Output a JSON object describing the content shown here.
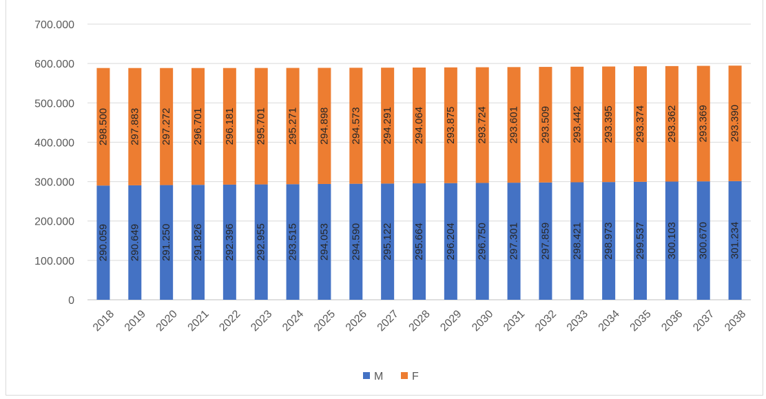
{
  "chart_data": {
    "type": "bar",
    "stacked": true,
    "title": "",
    "xlabel": "",
    "ylabel": "",
    "categories": [
      "2018",
      "2019",
      "2020",
      "2021",
      "2022",
      "2023",
      "2024",
      "2025",
      "2026",
      "2027",
      "2028",
      "2029",
      "2030",
      "2031",
      "2032",
      "2033",
      "2034",
      "2035",
      "2036",
      "2037",
      "2038"
    ],
    "series": [
      {
        "name": "M",
        "color": "#4472c4",
        "values": [
          290059,
          290649,
          291250,
          291826,
          292396,
          292955,
          293515,
          294053,
          294590,
          295122,
          295664,
          296204,
          296750,
          297301,
          297859,
          298421,
          298973,
          299537,
          300103,
          300670,
          301234
        ],
        "labels": [
          "290.059",
          "290.649",
          "291.250",
          "291.826",
          "292.396",
          "292.955",
          "293.515",
          "294.053",
          "294.590",
          "295.122",
          "295.664",
          "296.204",
          "296.750",
          "297.301",
          "297.859",
          "298.421",
          "298.973",
          "299.537",
          "300.103",
          "300.670",
          "301.234"
        ]
      },
      {
        "name": "F",
        "color": "#ed7d31",
        "values": [
          298500,
          297883,
          297272,
          296701,
          296181,
          295701,
          295271,
          294898,
          294573,
          294291,
          294064,
          293875,
          293724,
          293601,
          293509,
          293442,
          293395,
          293374,
          293362,
          293369,
          293390
        ],
        "labels": [
          "298.500",
          "297.883",
          "297.272",
          "296.701",
          "296.181",
          "295.701",
          "295.271",
          "294.898",
          "294.573",
          "294.291",
          "294.064",
          "293.875",
          "293.724",
          "293.601",
          "293.509",
          "293.442",
          "293.395",
          "293.374",
          "293.362",
          "293.369",
          "293.390"
        ]
      }
    ],
    "ylim": [
      0,
      700000
    ],
    "yticks": [
      0,
      100000,
      200000,
      300000,
      400000,
      500000,
      600000,
      700000
    ],
    "ytick_labels": [
      "0",
      "100.000",
      "200.000",
      "300.000",
      "400.000",
      "500.000",
      "600.000",
      "700.000"
    ],
    "grid": true,
    "legend": "bottom"
  }
}
